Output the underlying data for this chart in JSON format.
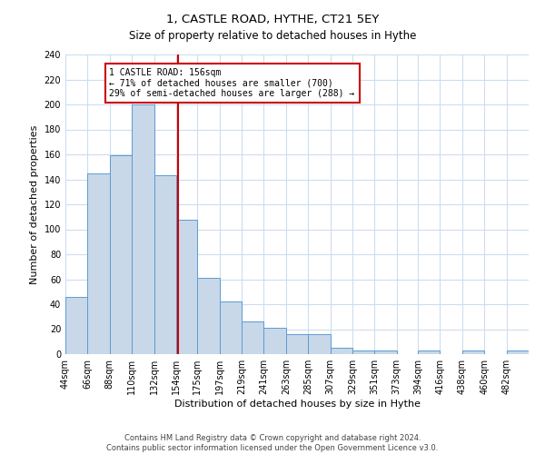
{
  "title": "1, CASTLE ROAD, HYTHE, CT21 5EY",
  "subtitle": "Size of property relative to detached houses in Hythe",
  "xlabel": "Distribution of detached houses by size in Hythe",
  "ylabel": "Number of detached properties",
  "bar_color": "#c8d8e8",
  "bar_edge_color": "#5b9bd5",
  "bin_labels": [
    "44sqm",
    "66sqm",
    "88sqm",
    "110sqm",
    "132sqm",
    "154sqm",
    "175sqm",
    "197sqm",
    "219sqm",
    "241sqm",
    "263sqm",
    "285sqm",
    "307sqm",
    "329sqm",
    "351sqm",
    "373sqm",
    "394sqm",
    "416sqm",
    "438sqm",
    "460sqm",
    "482sqm"
  ],
  "bin_edges": [
    44,
    66,
    88,
    110,
    132,
    154,
    175,
    197,
    219,
    241,
    263,
    285,
    307,
    329,
    351,
    373,
    394,
    416,
    438,
    460,
    482,
    504
  ],
  "counts": [
    46,
    145,
    159,
    200,
    143,
    108,
    61,
    42,
    26,
    21,
    16,
    16,
    5,
    3,
    3,
    0,
    3,
    0,
    3,
    0,
    3
  ],
  "property_size": 156,
  "annotation_title": "1 CASTLE ROAD: 156sqm",
  "annotation_line1": "← 71% of detached houses are smaller (700)",
  "annotation_line2": "29% of semi-detached houses are larger (288) →",
  "vline_color": "#cc0000",
  "annotation_box_color": "#cc0000",
  "ylim": [
    0,
    240
  ],
  "yticks": [
    0,
    20,
    40,
    60,
    80,
    100,
    120,
    140,
    160,
    180,
    200,
    220,
    240
  ],
  "footer_line1": "Contains HM Land Registry data © Crown copyright and database right 2024.",
  "footer_line2": "Contains public sector information licensed under the Open Government Licence v3.0.",
  "background_color": "#ffffff",
  "grid_color": "#ccddee",
  "title_fontsize": 9.5,
  "subtitle_fontsize": 8.5,
  "axis_label_fontsize": 8,
  "tick_fontsize": 7,
  "annotation_fontsize": 7,
  "footer_fontsize": 6
}
